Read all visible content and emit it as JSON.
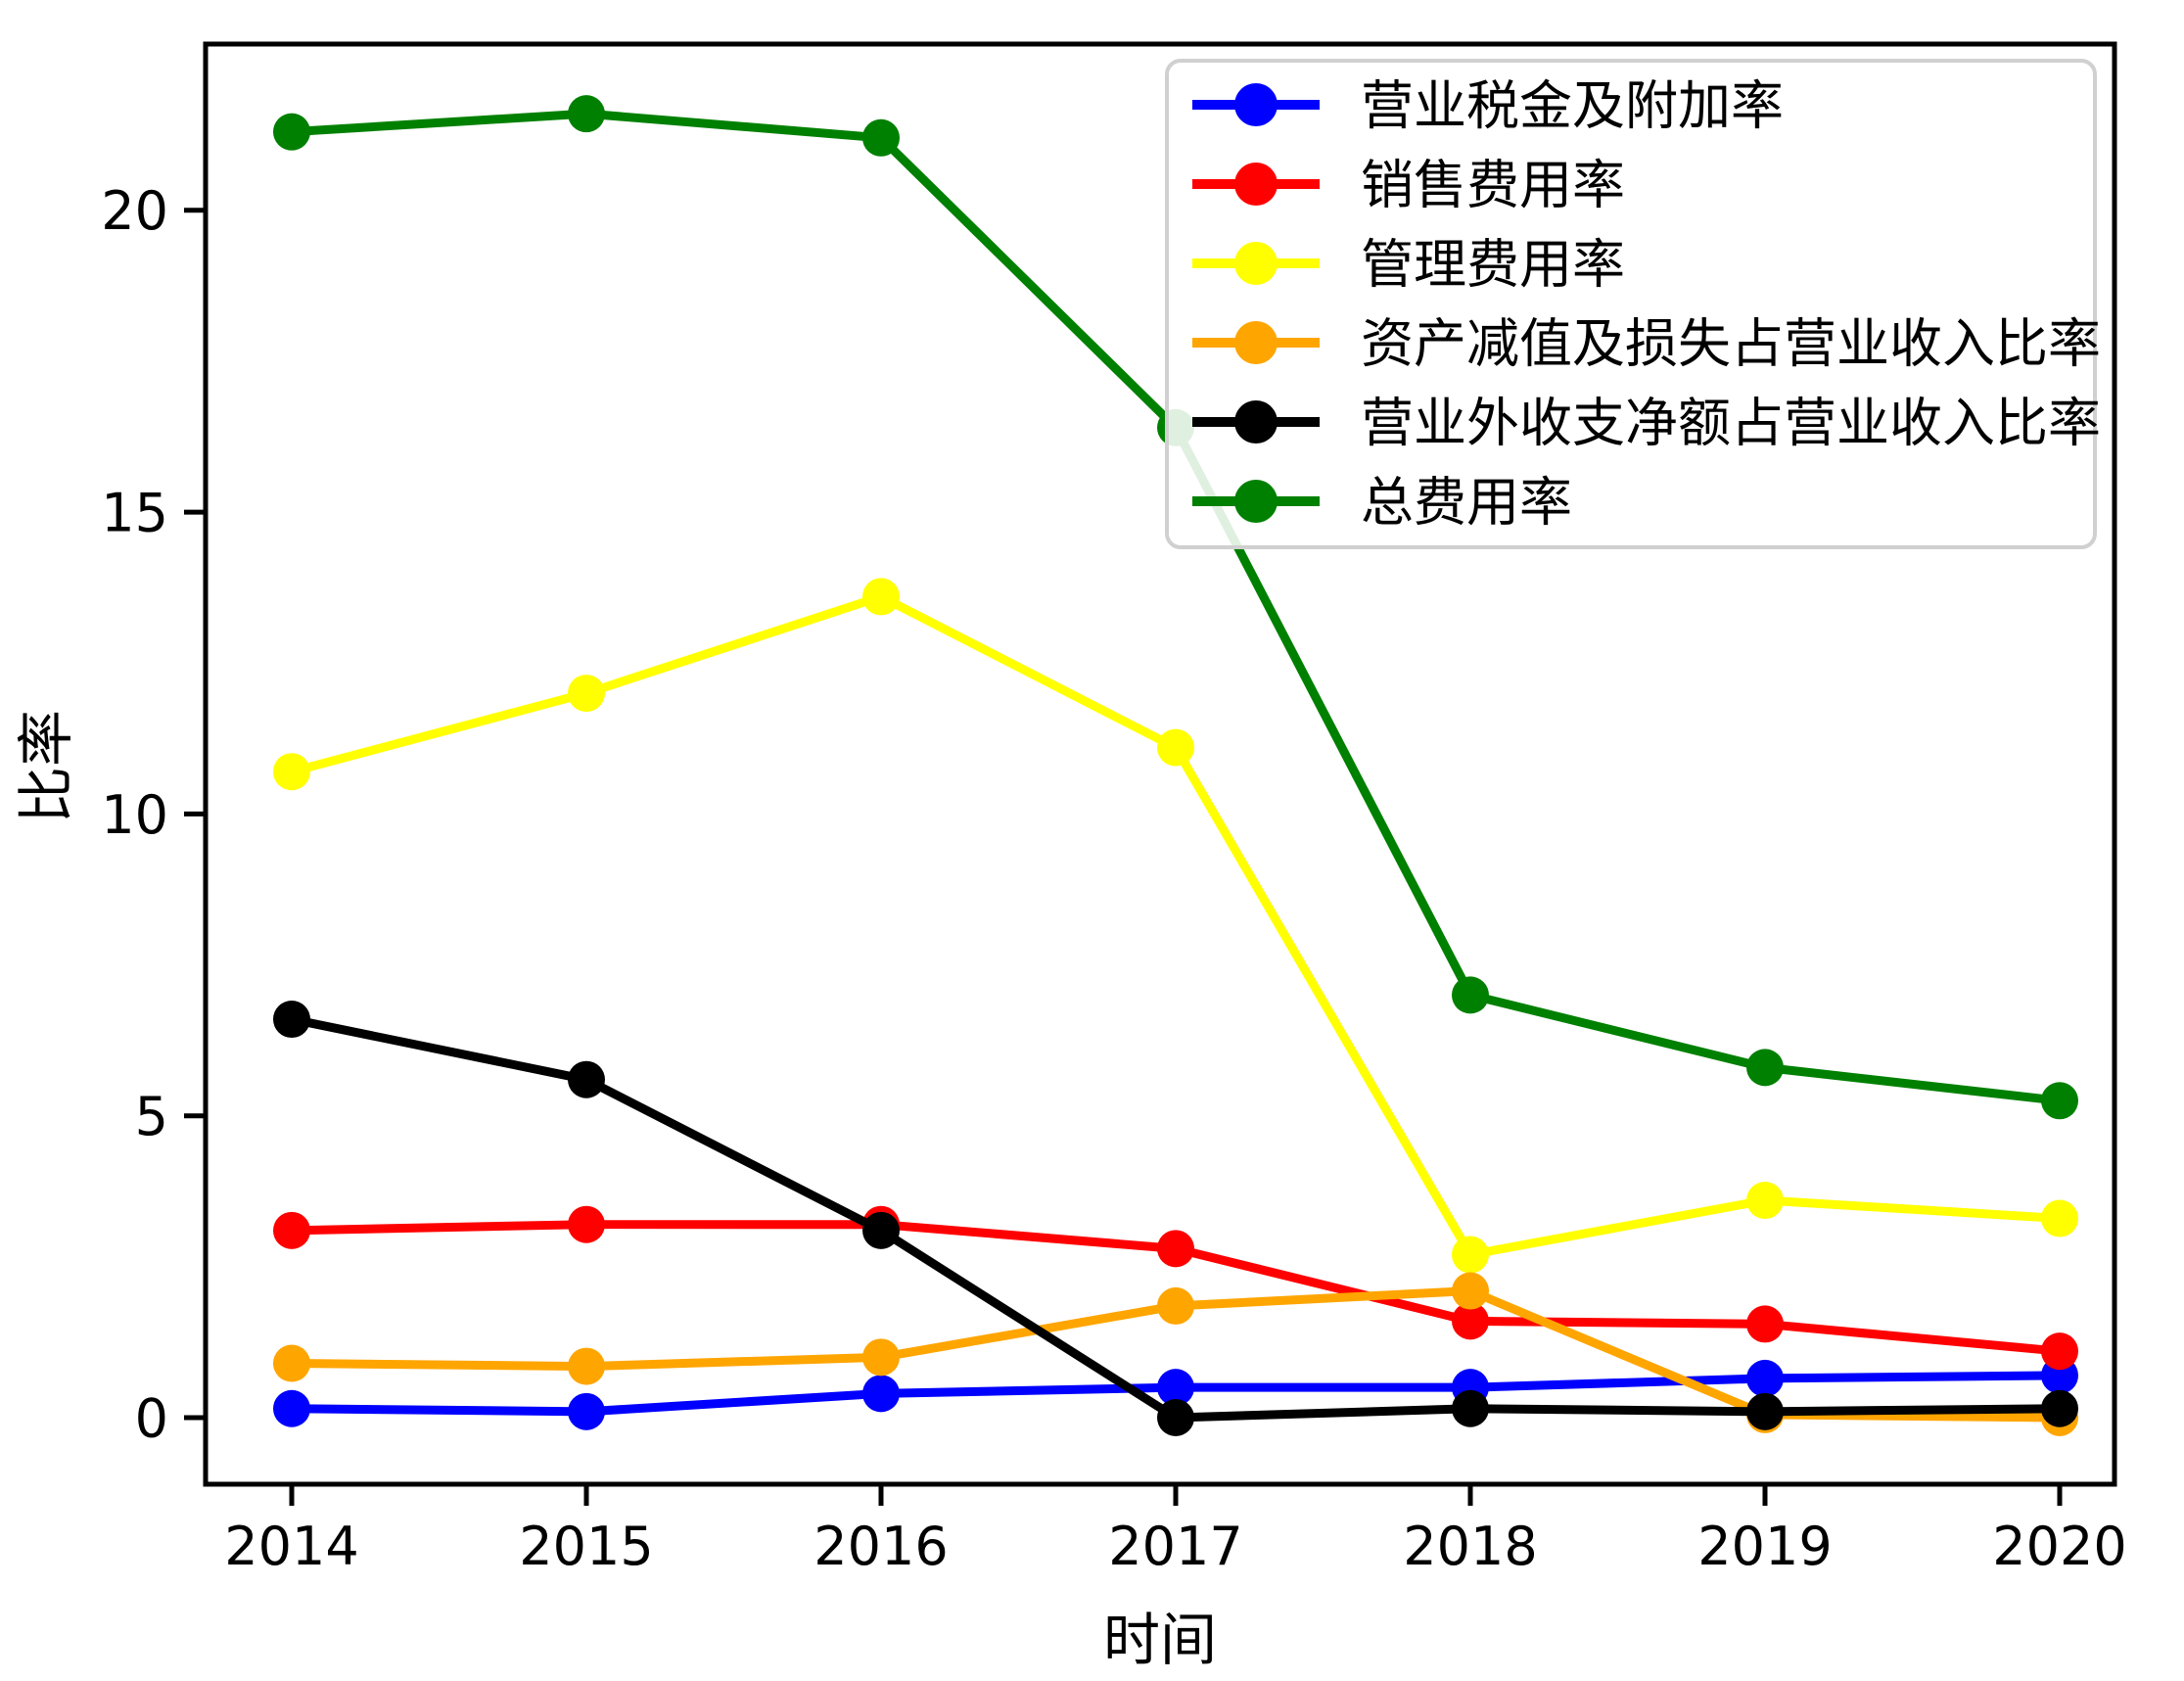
{
  "figure": {
    "background": "#ffffff",
    "frame_color": "#000000",
    "legend": {
      "border_color": "#d0d0d0",
      "background": "#ffffff"
    }
  },
  "chart_data": {
    "type": "line",
    "title": "",
    "xlabel": "时间",
    "ylabel": "比率",
    "x": [
      2014,
      2015,
      2016,
      2017,
      2018,
      2019,
      2020
    ],
    "y_ticks": [
      0,
      5,
      10,
      15,
      20
    ],
    "ylim": [
      -1.1,
      22.75
    ],
    "grid": false,
    "legend_position": "upper right",
    "marker": "circle",
    "series": [
      {
        "name": "营业税金及附加率",
        "color": "#0000ff",
        "values": [
          0.15,
          0.1,
          0.4,
          0.5,
          0.5,
          0.65,
          0.7
        ]
      },
      {
        "name": "销售费用率",
        "color": "#ff0000",
        "values": [
          3.1,
          3.2,
          3.2,
          2.8,
          1.6,
          1.55,
          1.1
        ]
      },
      {
        "name": "管理费用率",
        "color": "#ffff00",
        "values": [
          10.7,
          12.0,
          13.6,
          11.1,
          2.7,
          3.6,
          3.3
        ]
      },
      {
        "name": "资产减值及损失占营业收入比率",
        "color": "#ffa500",
        "values": [
          0.9,
          0.85,
          1.0,
          1.85,
          2.1,
          0.05,
          0.0
        ]
      },
      {
        "name": "营业外收支净额占营业收入比率",
        "color": "#000000",
        "values": [
          6.6,
          5.6,
          3.1,
          0.0,
          0.15,
          0.1,
          0.15
        ]
      },
      {
        "name": "总费用率",
        "color": "#008000",
        "values": [
          21.3,
          21.6,
          21.2,
          16.4,
          7.0,
          5.8,
          5.25
        ]
      }
    ]
  }
}
